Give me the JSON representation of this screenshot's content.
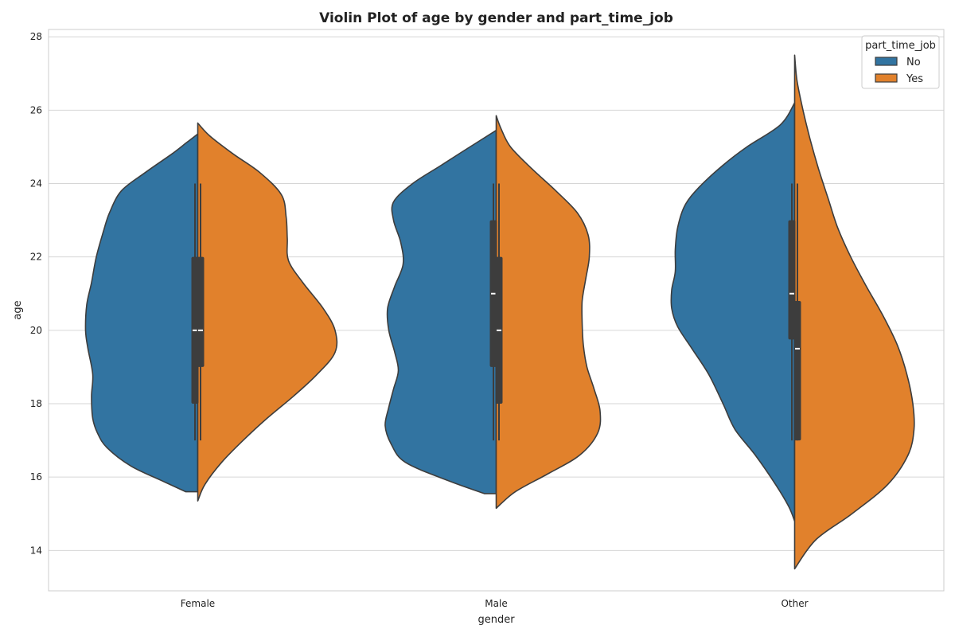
{
  "chart_data": {
    "type": "violin",
    "title": "Violin Plot of age by gender and part_time_job",
    "xlabel": "gender",
    "ylabel": "age",
    "categories": [
      "Female",
      "Male",
      "Other"
    ],
    "ylim": [
      12.9,
      28.2
    ],
    "yticks": [
      "14",
      "16",
      "18",
      "20",
      "22",
      "24",
      "26",
      "28"
    ],
    "grid": true,
    "legend": {
      "title": "part_time_job",
      "placement": "top-right"
    },
    "split": true,
    "series": [
      {
        "name": "No",
        "color": "#3274a1",
        "violins": [
          {
            "category": "Female",
            "min_cut": 15.6,
            "max_cut": 25.35,
            "box": {
              "q1": 18,
              "median": 20,
              "q3": 22,
              "whisker_low": 17,
              "whisker_high": 24
            },
            "density": [
              [
                15.6,
                0.1
              ],
              [
                15.9,
                0.3
              ],
              [
                16.3,
                0.56
              ],
              [
                16.8,
                0.76
              ],
              [
                17.2,
                0.84
              ],
              [
                17.6,
                0.88
              ],
              [
                18.2,
                0.89
              ],
              [
                18.8,
                0.88
              ],
              [
                19.5,
                0.92
              ],
              [
                20.0,
                0.94
              ],
              [
                20.7,
                0.93
              ],
              [
                21.3,
                0.89
              ],
              [
                22.0,
                0.85
              ],
              [
                22.7,
                0.79
              ],
              [
                23.2,
                0.74
              ],
              [
                23.8,
                0.64
              ],
              [
                24.3,
                0.44
              ],
              [
                24.8,
                0.22
              ],
              [
                25.1,
                0.1
              ],
              [
                25.35,
                0.0
              ]
            ]
          },
          {
            "category": "Male",
            "min_cut": 15.55,
            "max_cut": 25.45,
            "box": {
              "q1": 19,
              "median": 21,
              "q3": 23,
              "whisker_low": 17,
              "whisker_high": 24
            },
            "density": [
              [
                15.55,
                0.1
              ],
              [
                15.9,
                0.4
              ],
              [
                16.4,
                0.76
              ],
              [
                16.9,
                0.88
              ],
              [
                17.4,
                0.93
              ],
              [
                17.9,
                0.9
              ],
              [
                18.4,
                0.86
              ],
              [
                18.9,
                0.82
              ],
              [
                19.4,
                0.85
              ],
              [
                20.0,
                0.9
              ],
              [
                20.6,
                0.91
              ],
              [
                21.2,
                0.85
              ],
              [
                21.8,
                0.78
              ],
              [
                22.4,
                0.8
              ],
              [
                23.0,
                0.86
              ],
              [
                23.5,
                0.86
              ],
              [
                24.0,
                0.7
              ],
              [
                24.5,
                0.46
              ],
              [
                25.0,
                0.22
              ],
              [
                25.45,
                0.0
              ]
            ]
          },
          {
            "category": "Other",
            "min_cut": 14.8,
            "max_cut": 26.2,
            "box": {
              "q1": 19.75,
              "median": 21,
              "q3": 23,
              "whisker_low": 17,
              "whisker_high": 24
            },
            "density": [
              [
                14.8,
                0.0
              ],
              [
                15.2,
                0.05
              ],
              [
                15.8,
                0.16
              ],
              [
                16.6,
                0.33
              ],
              [
                17.3,
                0.5
              ],
              [
                18.0,
                0.6
              ],
              [
                18.8,
                0.72
              ],
              [
                19.5,
                0.86
              ],
              [
                20.1,
                0.98
              ],
              [
                20.6,
                1.03
              ],
              [
                21.1,
                1.03
              ],
              [
                21.6,
                1.0
              ],
              [
                22.2,
                1.0
              ],
              [
                22.8,
                0.98
              ],
              [
                23.4,
                0.92
              ],
              [
                23.9,
                0.8
              ],
              [
                24.5,
                0.6
              ],
              [
                25.0,
                0.4
              ],
              [
                25.6,
                0.12
              ],
              [
                26.2,
                0.0
              ]
            ]
          }
        ]
      },
      {
        "name": "Yes",
        "color": "#e1812c",
        "violins": [
          {
            "category": "Female",
            "min_cut": 15.35,
            "max_cut": 25.65,
            "box": {
              "q1": 19,
              "median": 20,
              "q3": 22,
              "whisker_low": 17,
              "whisker_high": 24
            },
            "density": [
              [
                15.35,
                0.0
              ],
              [
                15.8,
                0.06
              ],
              [
                16.4,
                0.2
              ],
              [
                17.0,
                0.38
              ],
              [
                17.6,
                0.58
              ],
              [
                18.2,
                0.8
              ],
              [
                18.8,
                1.0
              ],
              [
                19.4,
                1.15
              ],
              [
                20.0,
                1.15
              ],
              [
                20.6,
                1.05
              ],
              [
                21.3,
                0.88
              ],
              [
                21.9,
                0.76
              ],
              [
                22.5,
                0.75
              ],
              [
                23.1,
                0.74
              ],
              [
                23.7,
                0.7
              ],
              [
                24.3,
                0.52
              ],
              [
                24.8,
                0.3
              ],
              [
                25.3,
                0.1
              ],
              [
                25.65,
                0.0
              ]
            ]
          },
          {
            "category": "Male",
            "min_cut": 15.15,
            "max_cut": 25.85,
            "box": {
              "q1": 18,
              "median": 20,
              "q3": 22,
              "whisker_low": 17,
              "whisker_high": 24
            },
            "density": [
              [
                15.15,
                0.0
              ],
              [
                15.6,
                0.16
              ],
              [
                16.1,
                0.44
              ],
              [
                16.6,
                0.7
              ],
              [
                17.2,
                0.85
              ],
              [
                17.8,
                0.87
              ],
              [
                18.4,
                0.82
              ],
              [
                19.0,
                0.76
              ],
              [
                19.6,
                0.73
              ],
              [
                20.2,
                0.72
              ],
              [
                20.8,
                0.72
              ],
              [
                21.4,
                0.75
              ],
              [
                22.0,
                0.78
              ],
              [
                22.6,
                0.77
              ],
              [
                23.2,
                0.68
              ],
              [
                23.8,
                0.5
              ],
              [
                24.4,
                0.3
              ],
              [
                25.0,
                0.12
              ],
              [
                25.5,
                0.04
              ],
              [
                25.85,
                0.0
              ]
            ]
          },
          {
            "category": "Other",
            "min_cut": 13.5,
            "max_cut": 27.5,
            "box": {
              "q1": 17,
              "median": 19.5,
              "q3": 20.8,
              "whisker_low": 17,
              "whisker_high": 24
            },
            "density": [
              [
                13.5,
                0.0
              ],
              [
                14.3,
                0.18
              ],
              [
                15.0,
                0.48
              ],
              [
                15.8,
                0.78
              ],
              [
                16.6,
                0.95
              ],
              [
                17.3,
                1.0
              ],
              [
                18.0,
                0.99
              ],
              [
                18.8,
                0.94
              ],
              [
                19.6,
                0.86
              ],
              [
                20.4,
                0.74
              ],
              [
                21.2,
                0.6
              ],
              [
                22.0,
                0.47
              ],
              [
                22.8,
                0.36
              ],
              [
                23.6,
                0.28
              ],
              [
                24.4,
                0.2
              ],
              [
                25.2,
                0.13
              ],
              [
                26.0,
                0.07
              ],
              [
                26.8,
                0.02
              ],
              [
                27.5,
                0.0
              ]
            ]
          }
        ]
      }
    ]
  }
}
